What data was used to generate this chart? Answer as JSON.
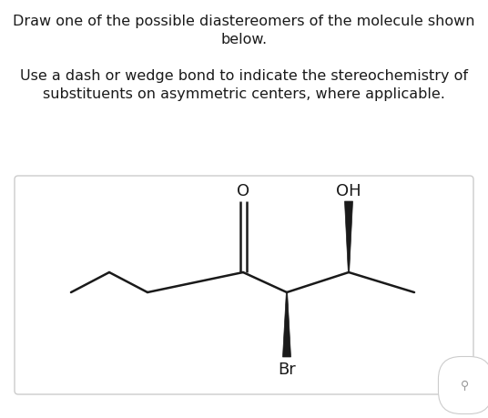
{
  "title_line1": "Draw one of the possible diastereomers of the molecule shown",
  "title_line2": "below.",
  "subtitle_line1": "Use a dash or wedge bond to indicate the stereochemistry of",
  "subtitle_line2": "substituents on asymmetric centers, where applicable.",
  "title_fontsize": 11.5,
  "subtitle_fontsize": 11.5,
  "bg_color": "#ffffff",
  "bond_color": "#1a1a1a",
  "text_color": "#1a1a1a",
  "box_edge_color": "#cccccc",
  "label_O": "O",
  "label_OH": "OH",
  "label_Br": "Br",
  "lw": 1.8
}
